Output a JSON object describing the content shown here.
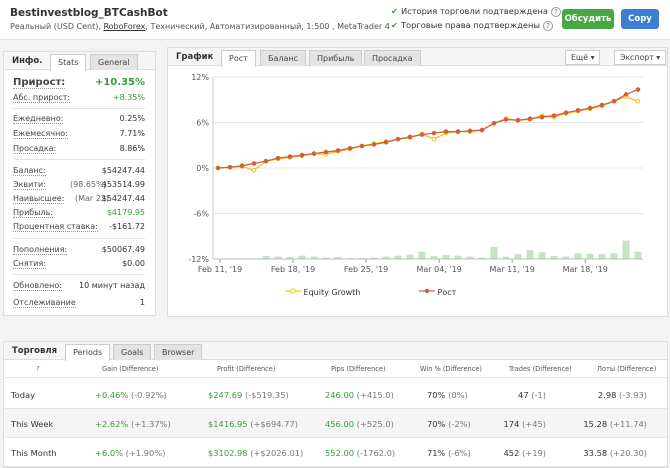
{
  "header": {
    "title": "Bestinvestblog_BTCashBot",
    "subtitle_pre": "Реальный (USD Cent), ",
    "broker": "RoboForex",
    "subtitle_post": ", Технический, Автоматизированный, 1:500 , MetaTrader 4",
    "verify_history": "История торговли подтверждена",
    "verify_rights": "Торговые права подтверждены",
    "discuss_btn": "Обсудить",
    "copy_btn": "Copy"
  },
  "info": {
    "title": "Инфо.",
    "tabs": [
      "Stats",
      "General"
    ],
    "growth_label": "Прирост:",
    "growth_value": "+10.35%",
    "abs_label": "Абс. прирост:",
    "abs_value": "+8.35%",
    "daily_label": "Ежедневно:",
    "daily_value": "0.25%",
    "monthly_label": "Ежемесячно:",
    "monthly_value": "7.71%",
    "drawdown_label": "Просадка:",
    "drawdown_value": "8.86%",
    "balance_label": "Баланс:",
    "balance_value": "$54247.44",
    "equity_label": "Эквити:",
    "equity_pct": "(98.65%)",
    "equity_value": "$53514.99",
    "highest_label": "Наивысшее:",
    "highest_date": "(Mar 22)",
    "highest_value": "$54247.44",
    "profit_label": "Прибыль:",
    "profit_value": "$4179.95",
    "interest_label": "Процентная ставка:",
    "interest_value": "-$161.72",
    "deposits_label": "Пополнения:",
    "deposits_value": "$50067.49",
    "withdrawals_label": "Снятия:",
    "withdrawals_value": "$0.00",
    "updated_label": "Обновлено:",
    "updated_value": "10 минут назад",
    "tracking_label": "Отслеживание",
    "tracking_value": "1"
  },
  "graph": {
    "title": "График",
    "tabs": [
      "Рост",
      "Баланс",
      "Прибыль",
      "Просадка"
    ],
    "more": "Ещё",
    "export": "Экспорт",
    "legend_equity": "Equity Growth",
    "legend_growth": "Рост"
  },
  "chart_data": {
    "type": "line",
    "x_ticks": [
      "Feb 11, '19",
      "Feb 18, '19",
      "Feb 25, '19",
      "Mar 04, '19",
      "Mar 11, '19",
      "Mar 18, '19"
    ],
    "y_ticks": [
      "12%",
      "6%",
      "0%",
      "-6%",
      "-12%"
    ],
    "ylim": [
      -12,
      12
    ],
    "series": [
      {
        "name": "Equity Growth",
        "color": "#f0c419",
        "values": [
          0,
          0.1,
          0.2,
          -0.3,
          0.9,
          1.2,
          1.4,
          1.6,
          1.9,
          1.8,
          2.2,
          2.5,
          2.9,
          3.2,
          3.5,
          3.8,
          4.0,
          4.5,
          3.8,
          4.6,
          4.8,
          4.8,
          5.0,
          5.9,
          6.5,
          6.3,
          6.4,
          6.9,
          6.7,
          7.2,
          7.5,
          7.8,
          8.2,
          8.8,
          9.4,
          8.8
        ]
      },
      {
        "name": "Рост",
        "color": "#d0603a",
        "values": [
          0,
          0.1,
          0.3,
          0.6,
          0.9,
          1.3,
          1.5,
          1.7,
          1.9,
          2.1,
          2.3,
          2.6,
          2.9,
          3.1,
          3.4,
          3.8,
          4.1,
          4.4,
          4.6,
          4.8,
          4.8,
          4.9,
          5.0,
          5.9,
          6.4,
          6.3,
          6.5,
          6.7,
          6.9,
          7.3,
          7.6,
          7.9,
          8.3,
          8.8,
          9.7,
          10.35
        ]
      }
    ],
    "bars": [
      0,
      0,
      0,
      0,
      0.6,
      0.5,
      0.4,
      0.7,
      0.5,
      0.3,
      0.4,
      0.2,
      0.2,
      0.3,
      0.5,
      0.7,
      0.9,
      1.5,
      0.6,
      0.8,
      0.7,
      0.5,
      0.3,
      2.5,
      0.5,
      1.0,
      1.8,
      1.4,
      0.6,
      0.5,
      1.2,
      1.1,
      1.0,
      1.2,
      3.8,
      1.5
    ],
    "bar_color": "#c3e3c3"
  },
  "trading": {
    "title": "Торговля",
    "tabs": [
      "Periods",
      "Goals",
      "Browser"
    ],
    "columns": [
      "Gain (Difference)",
      "Profit (Difference)",
      "Pips (Difference)",
      "Win % (Difference)",
      "Trades (Difference)",
      "Лоты (Difference)"
    ],
    "rows": [
      {
        "period": "Today",
        "gain": "+0.46%",
        "gain_d": "(-0.92%)",
        "profit": "$247.69",
        "profit_d": "(-$519.35)",
        "pips": "246.00",
        "pips_d": "(+415.0)",
        "win": "70%",
        "win_d": "(0%)",
        "trades": "47",
        "trades_d": "(-1)",
        "lots": "2.98",
        "lots_d": "(-3.93)"
      },
      {
        "period": "This Week",
        "gain": "+2.62%",
        "gain_d": "(+1.37%)",
        "profit": "$1416.95",
        "profit_d": "(+$694.77)",
        "pips": "456.00",
        "pips_d": "(+525.0)",
        "win": "70%",
        "win_d": "(-2%)",
        "trades": "174",
        "trades_d": "(+45)",
        "lots": "15.28",
        "lots_d": "(+11.74)"
      },
      {
        "period": "This Month",
        "gain": "+6.0%",
        "gain_d": "(+1.90%)",
        "profit": "$3102.98",
        "profit_d": "(+$2026.01)",
        "pips": "552.00",
        "pips_d": "(-1762.0)",
        "win": "71%",
        "win_d": "(-6%)",
        "trades": "452",
        "trades_d": "(+19)",
        "lots": "33.58",
        "lots_d": "(+20.30)"
      }
    ]
  }
}
